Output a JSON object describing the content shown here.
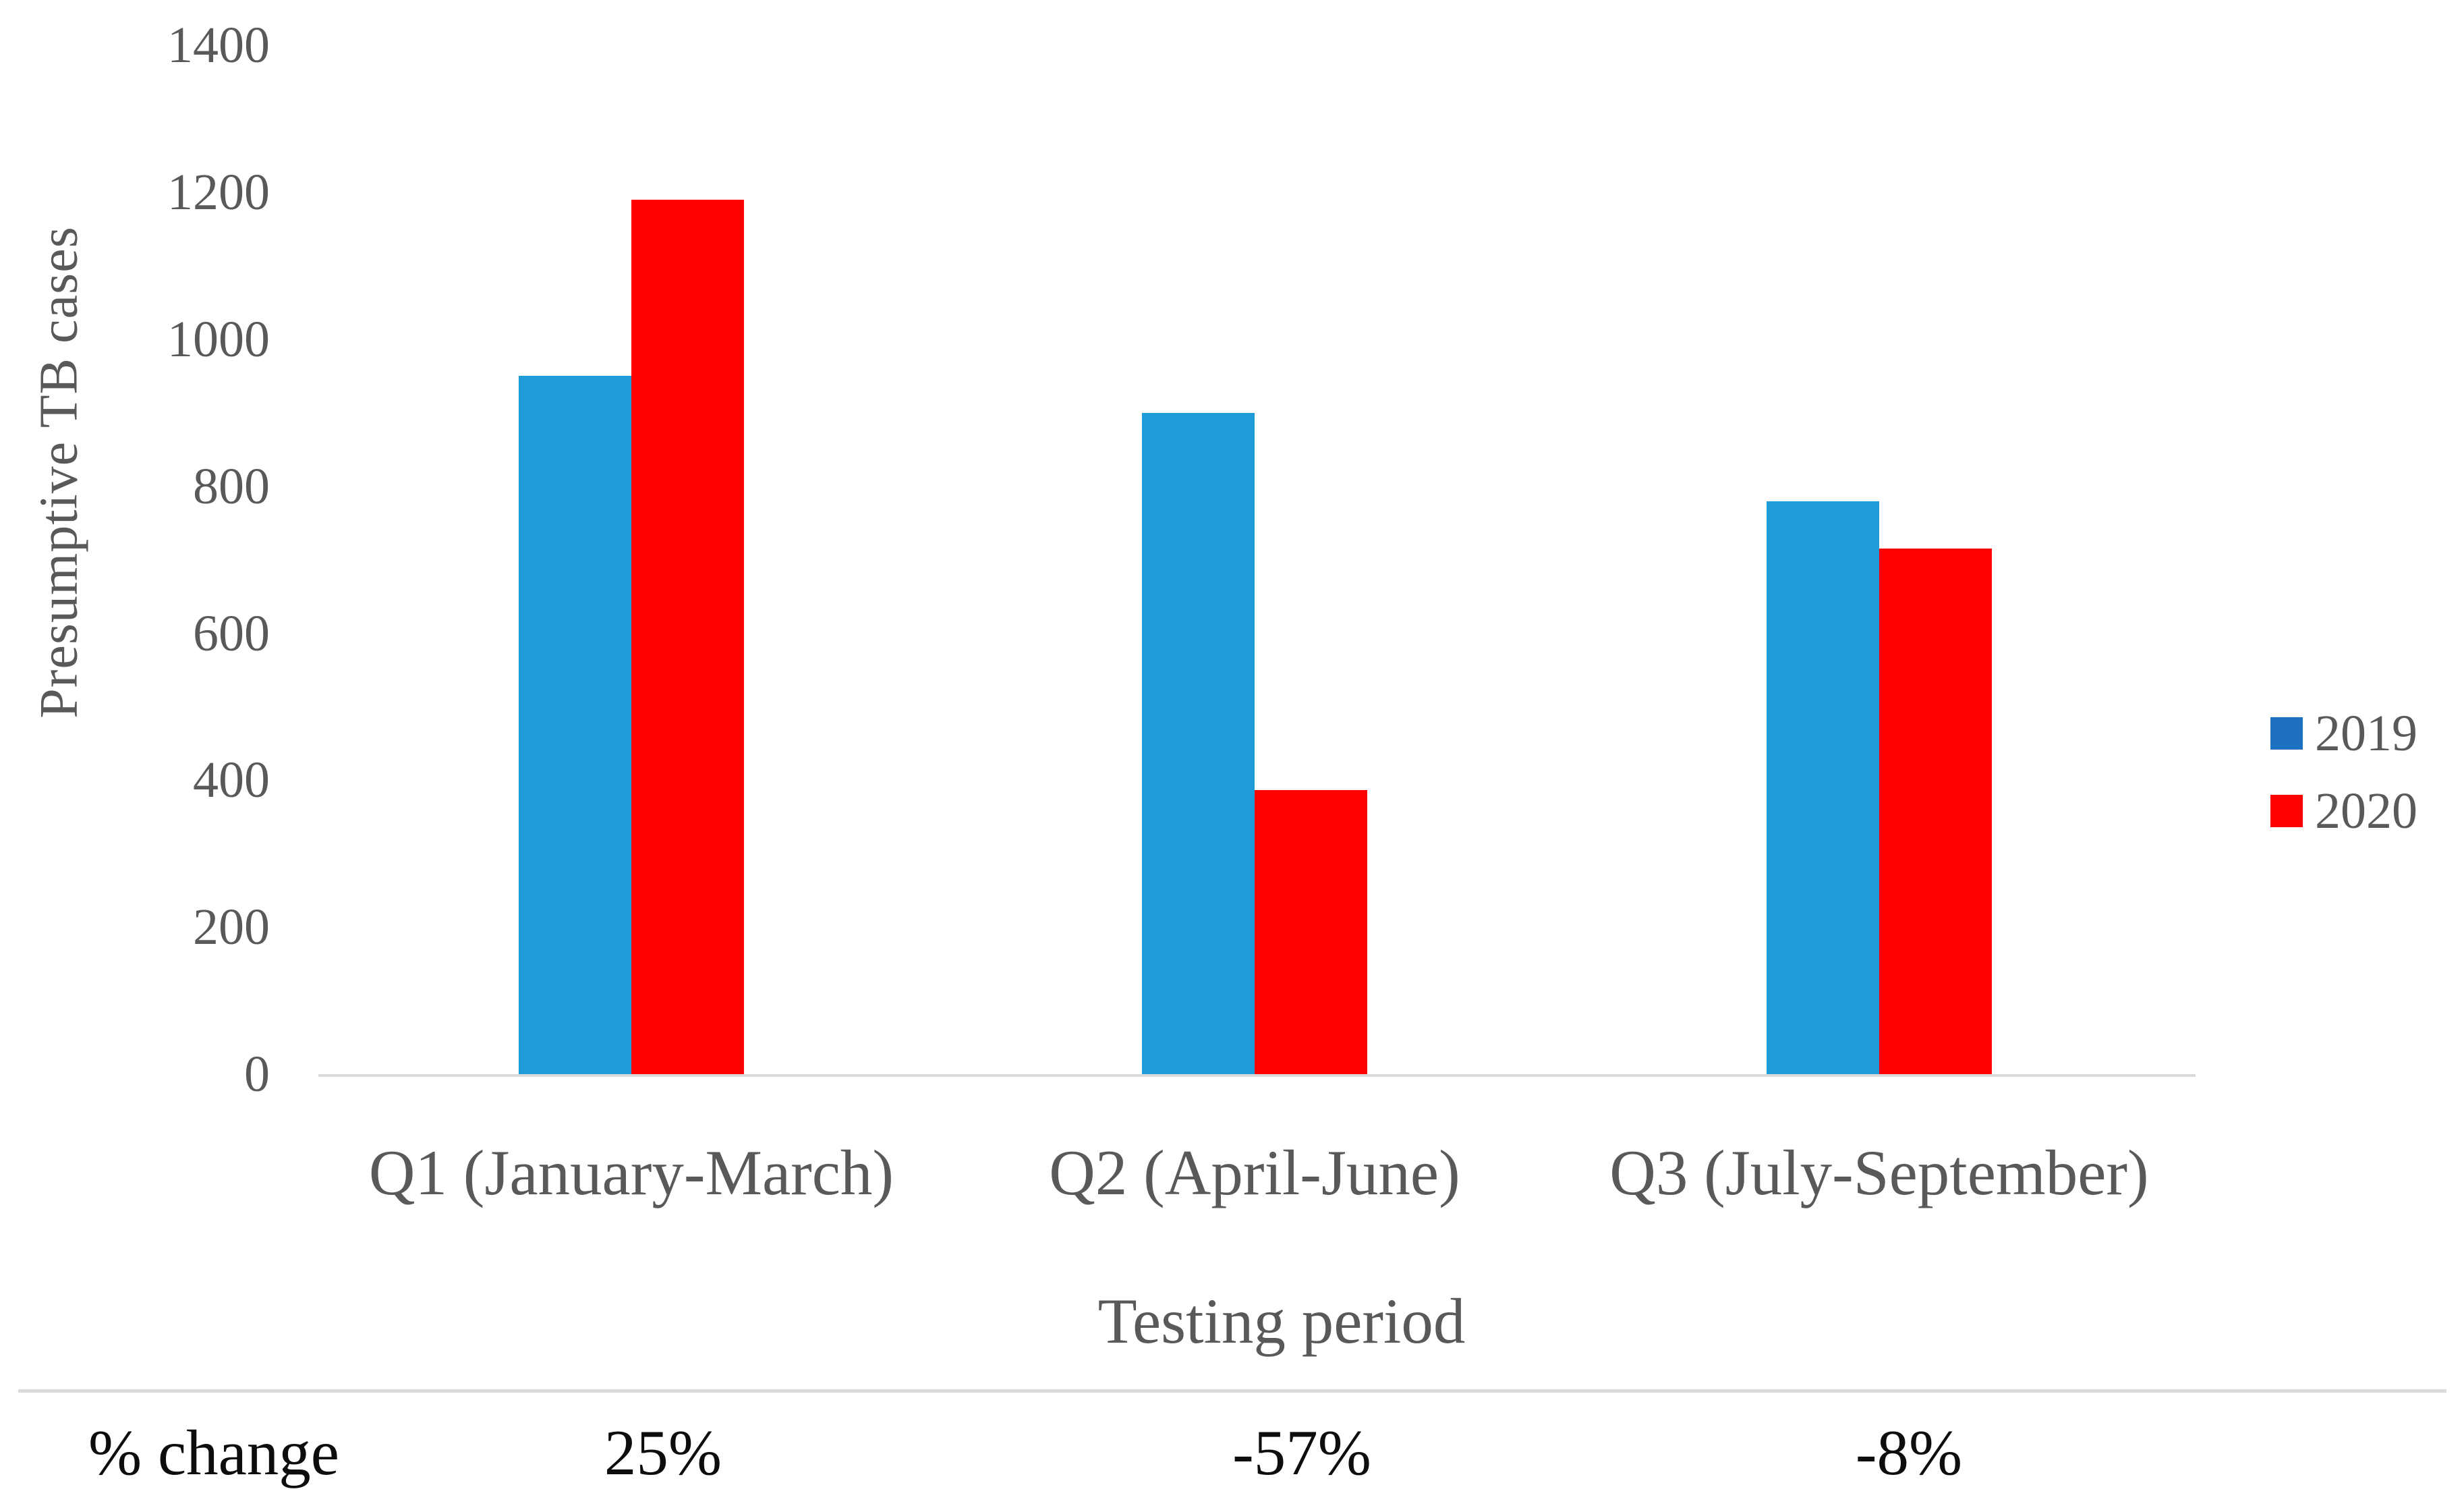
{
  "chart_data": {
    "type": "bar",
    "title": "",
    "categories": [
      "Q1 (January-March)",
      "Q2 (April-June)",
      "Q3 (July-September)"
    ],
    "series": [
      {
        "name": "2019",
        "color": "#1F9BD7",
        "legend_color": "#1D70C2",
        "values": [
          950,
          900,
          780
        ]
      },
      {
        "name": "2020",
        "color": "#FE0000",
        "legend_color": "#FE0000",
        "values": [
          1190,
          387,
          715
        ]
      }
    ],
    "ylabel": "Presumptive TB cases",
    "xlabel": "Testing period",
    "y_ticks": [
      1400,
      1200,
      1000,
      800,
      600,
      400,
      200,
      0
    ],
    "ylim": [
      0,
      1400
    ],
    "grid": false,
    "legend_position": "right",
    "pct_change": {
      "label": "% change",
      "values": [
        "25%",
        "-57%",
        "-8%"
      ]
    }
  },
  "colors": {
    "axis_line": "#d9d9d9",
    "divider_line": "#d9d9d9",
    "tick_text": "#595959",
    "pct_text": "#0d0d0d"
  }
}
